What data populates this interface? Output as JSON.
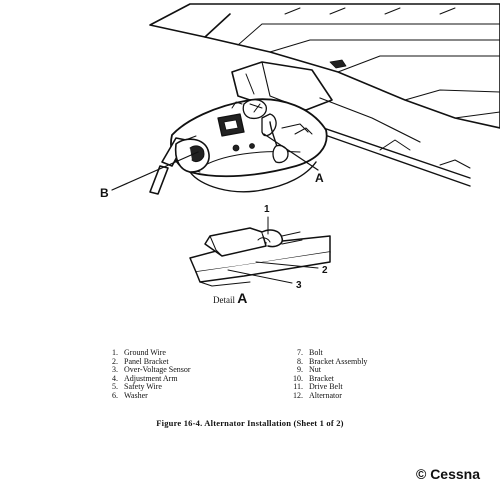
{
  "callouts": {
    "a": "A",
    "b": "B",
    "detail_1": "1",
    "detail_2": "2",
    "detail_3": "3"
  },
  "detail_caption": {
    "prefix": "Detail",
    "letter": "A"
  },
  "legend": {
    "left": [
      {
        "num": "1.",
        "label": "Ground Wire"
      },
      {
        "num": "2.",
        "label": "Panel Bracket"
      },
      {
        "num": "3.",
        "label": "Over-Voltage Sensor"
      },
      {
        "num": "4.",
        "label": "Adjustment Arm"
      },
      {
        "num": "5.",
        "label": "Safety Wire"
      },
      {
        "num": "6.",
        "label": "Washer"
      }
    ],
    "right": [
      {
        "num": "7.",
        "label": "Bolt"
      },
      {
        "num": "8.",
        "label": "Bracket Assembly"
      },
      {
        "num": "9.",
        "label": "Nut"
      },
      {
        "num": "10.",
        "label": "Bracket"
      },
      {
        "num": "11.",
        "label": "Drive Belt"
      },
      {
        "num": "12.",
        "label": "Alternator"
      }
    ]
  },
  "figure_title": "Figure 16-4. Alternator Installation (Sheet 1 of 2)",
  "copyright": "© Cessna"
}
